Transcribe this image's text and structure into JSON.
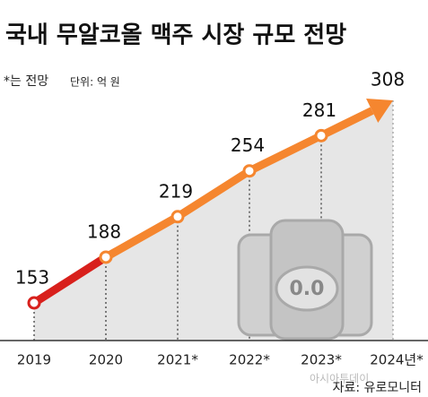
{
  "chart_data": {
    "type": "line",
    "title": "국내 무알코올 맥주 시장 규모 전망",
    "note": "*는 전망",
    "unit": "단위: 억 원",
    "source": "자료: 유로모니터",
    "watermark": "아시아투데이",
    "illustration_text": "0.0",
    "categories": [
      "2019",
      "2020",
      "2021*",
      "2022*",
      "2023*",
      "2024년*"
    ],
    "values": [
      153,
      188,
      219,
      254,
      281,
      308
    ],
    "color": "#f5862f",
    "first_segment_color": "#d8201c"
  }
}
